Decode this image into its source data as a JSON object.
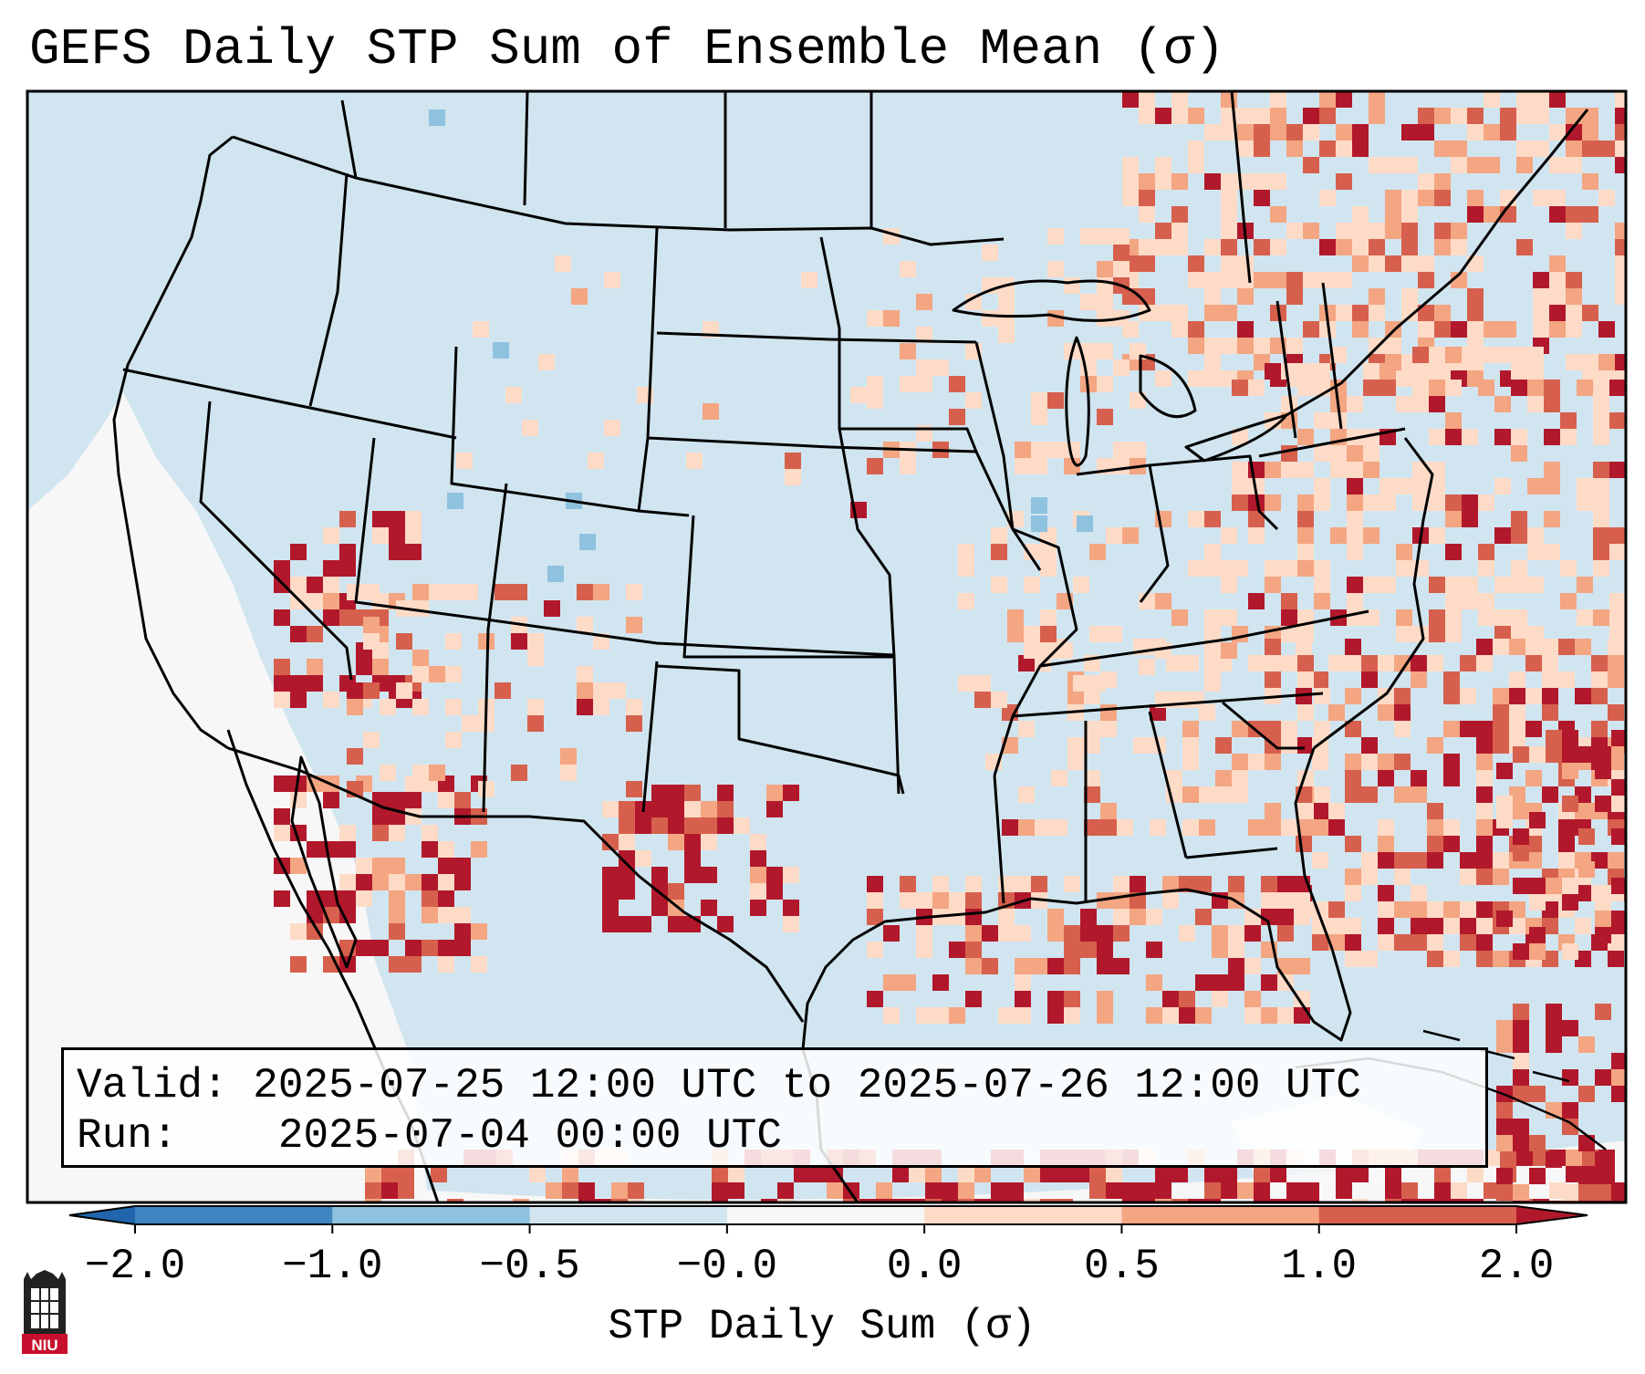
{
  "title": "GEFS Daily STP Sum of Ensemble Mean (σ)",
  "info": {
    "valid_label": "Valid:",
    "valid_value": "2025-07-25 12:00 UTC to 2025-07-26 12:00 UTC",
    "run_label": "Run:",
    "run_value": "2025-07-04 00:00 UTC"
  },
  "colorbar": {
    "title": "STP Daily Sum (σ)",
    "tick_labels": [
      "−2.0",
      "−1.0",
      "−0.5",
      "−0.0",
      "0.0",
      "0.5",
      "1.0",
      "2.0"
    ],
    "bins": [
      {
        "range": "-2.0 to -1.0",
        "color": "#3d86c1"
      },
      {
        "range": "-1.0 to -0.5",
        "color": "#8fc2df"
      },
      {
        "range": "-0.5 to -0.0",
        "color": "#d1e5f0"
      },
      {
        "range": "-0.0 to 0.0",
        "color": "#f7f7f7"
      },
      {
        "range": "0.0 to 0.5",
        "color": "#fddbc7"
      },
      {
        "range": "0.5 to 1.0",
        "color": "#f4a582"
      },
      {
        "range": "1.0 to 2.0",
        "color": "#d6604d"
      }
    ],
    "under_color": "#2166ac",
    "over_color": "#b2182b"
  },
  "map": {
    "background_color": "#d1e5f0",
    "extent": "Continental United States, Mexico, Gulf of Mexico, southern Canada"
  },
  "logo": {
    "text": "NIU",
    "color": "#c8102e"
  }
}
